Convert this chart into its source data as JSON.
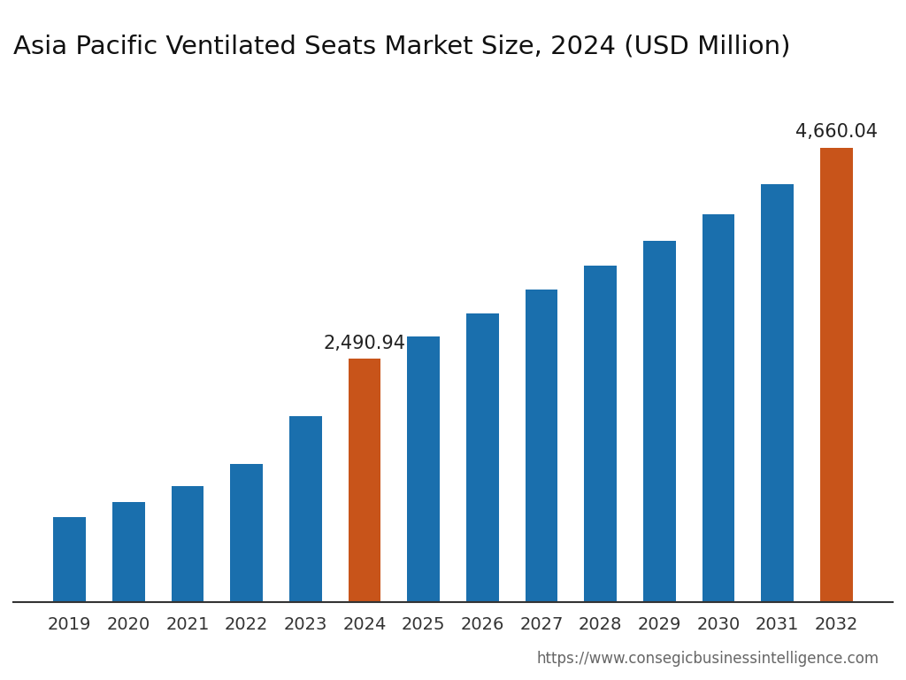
{
  "title": "Asia Pacific Ventilated Seats Market Size, 2024 (USD Million)",
  "years": [
    2019,
    2020,
    2021,
    2022,
    2023,
    2024,
    2025,
    2026,
    2027,
    2028,
    2029,
    2030,
    2031,
    2032
  ],
  "values": [
    870,
    1020,
    1190,
    1410,
    1900,
    2490.94,
    2720,
    2960,
    3200,
    3450,
    3700,
    3970,
    4280,
    4660.04
  ],
  "bar_colors": [
    "#1a6fad",
    "#1a6fad",
    "#1a6fad",
    "#1a6fad",
    "#1a6fad",
    "#c8541a",
    "#1a6fad",
    "#1a6fad",
    "#1a6fad",
    "#1a6fad",
    "#1a6fad",
    "#1a6fad",
    "#1a6fad",
    "#c8541a"
  ],
  "highlight_labels": [
    {
      "value": "2,490.94",
      "index": 5
    },
    {
      "value": "4,660.04",
      "index": 13
    }
  ],
  "background_color": "#ffffff",
  "bar_width": 0.55,
  "ylim": [
    0,
    5400
  ],
  "title_fontsize": 21,
  "tick_fontsize": 14,
  "annotation_fontsize": 15,
  "footer_text": "https://www.consegicbusinessintelligence.com",
  "footer_fontsize": 12,
  "footer_color": "#666666"
}
